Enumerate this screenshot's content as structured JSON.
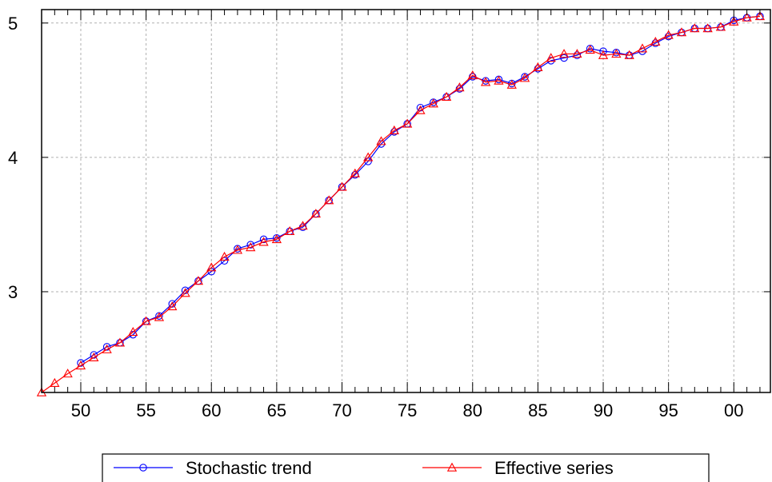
{
  "chart_data": {
    "type": "line",
    "title": "",
    "xlabel": "",
    "ylabel": "",
    "x": [
      1947,
      1948,
      1949,
      1950,
      1951,
      1952,
      1953,
      1954,
      1955,
      1956,
      1957,
      1958,
      1959,
      1960,
      1961,
      1962,
      1963,
      1964,
      1965,
      1966,
      1967,
      1968,
      1969,
      1970,
      1971,
      1972,
      1973,
      1974,
      1975,
      1976,
      1977,
      1978,
      1979,
      1980,
      1981,
      1982,
      1983,
      1984,
      1985,
      1986,
      1987,
      1988,
      1989,
      1990,
      1991,
      1992,
      1993,
      1994,
      1995,
      1996,
      1997,
      1998,
      1999,
      2000,
      2001,
      2002
    ],
    "xlim": [
      1947,
      2002.8
    ],
    "ylim": [
      2.25,
      5.1
    ],
    "xticks": [
      1950,
      1955,
      1960,
      1965,
      1970,
      1975,
      1980,
      1985,
      1990,
      1995,
      2000
    ],
    "xtick_labels": [
      "50",
      "55",
      "60",
      "65",
      "70",
      "75",
      "80",
      "85",
      "90",
      "95",
      "00"
    ],
    "yticks": [
      3,
      4,
      5
    ],
    "ytick_labels": [
      "3",
      "4",
      "5"
    ],
    "grid": true,
    "legend_position": "bottom",
    "series": [
      {
        "name": "Stochastic trend",
        "color": "#0000ff",
        "marker": "circle",
        "values": [
          null,
          null,
          null,
          2.47,
          2.53,
          2.59,
          2.62,
          2.68,
          2.78,
          2.82,
          2.91,
          3.01,
          3.08,
          3.15,
          3.23,
          3.32,
          3.35,
          3.39,
          3.4,
          3.45,
          3.48,
          3.58,
          3.68,
          3.78,
          3.87,
          3.97,
          4.1,
          4.19,
          4.25,
          4.37,
          4.41,
          4.45,
          4.51,
          4.6,
          4.57,
          4.58,
          4.55,
          4.6,
          4.66,
          4.72,
          4.74,
          4.76,
          4.81,
          4.79,
          4.78,
          4.76,
          4.79,
          4.85,
          4.9,
          4.93,
          4.96,
          4.96,
          4.97,
          5.02,
          5.04,
          5.05
        ]
      },
      {
        "name": "Effective series",
        "color": "#ff0000",
        "marker": "triangle",
        "values": [
          2.25,
          2.32,
          2.39,
          2.45,
          2.51,
          2.57,
          2.62,
          2.7,
          2.78,
          2.81,
          2.89,
          2.99,
          3.08,
          3.18,
          3.26,
          3.31,
          3.33,
          3.37,
          3.39,
          3.45,
          3.49,
          3.58,
          3.68,
          3.78,
          3.88,
          4.0,
          4.12,
          4.2,
          4.25,
          4.35,
          4.4,
          4.45,
          4.52,
          4.61,
          4.56,
          4.57,
          4.54,
          4.59,
          4.67,
          4.74,
          4.77,
          4.77,
          4.8,
          4.76,
          4.77,
          4.76,
          4.81,
          4.86,
          4.91,
          4.93,
          4.96,
          4.96,
          4.97,
          5.01,
          5.04,
          5.05
        ]
      }
    ]
  }
}
